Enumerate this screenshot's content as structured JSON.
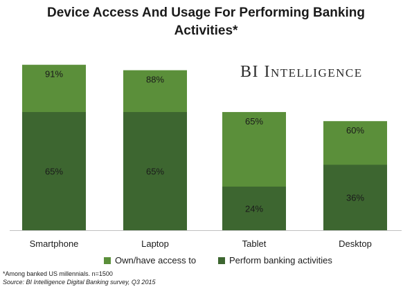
{
  "title_line1": "Device Access And Usage For Performing Banking",
  "title_line2": "Activities*",
  "watermark": "BI Intelligence",
  "legend": [
    {
      "label": "Own/have access to",
      "color": "#5b8f3a"
    },
    {
      "label": "Perform banking activities",
      "color": "#3d6630"
    }
  ],
  "footnote": "*Among banked US millennials. n=1500",
  "source": "Source: BI Intelligence Digital Banking survey, Q3 2015",
  "chart_data": {
    "type": "bar",
    "title": "Device Access And Usage For Performing Banking Activities*",
    "categories": [
      "Smartphone",
      "Laptop",
      "Tablet",
      "Desktop"
    ],
    "series": [
      {
        "name": "Own/have access to",
        "values": [
          91,
          88,
          65,
          60
        ],
        "labels": [
          "91%",
          "88%",
          "65%",
          "60%"
        ],
        "color": "#5b8f3a"
      },
      {
        "name": "Perform banking activities",
        "values": [
          65,
          65,
          24,
          36
        ],
        "labels": [
          "65%",
          "65%",
          "24%",
          "36%"
        ],
        "color": "#3d6630"
      }
    ],
    "ylim": [
      0,
      100
    ],
    "xlabel": "",
    "ylabel": "",
    "grid": false,
    "legend_position": "bottom"
  }
}
